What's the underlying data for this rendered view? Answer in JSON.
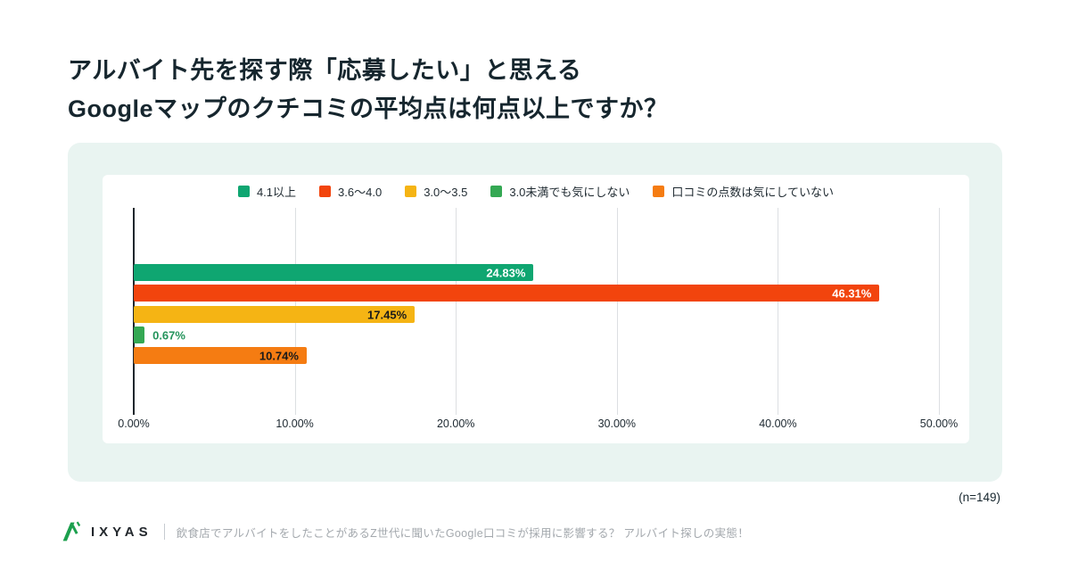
{
  "title": {
    "line1": "アルバイト先を探す際「応募したい」と思える",
    "line2": "Googleマップのクチコミの平均点は何点以上ですか？"
  },
  "note": "(n=149)",
  "footer": {
    "brand": "IXYAS",
    "caption": "飲食店でアルバイトをしたことがあるZ世代に聞いたGoogle口コミが採用に影響する？ アルバイト探しの実態！",
    "logo_color": "#1CA04E"
  },
  "chart_data": {
    "type": "bar",
    "orientation": "horizontal",
    "title": "",
    "categories": [
      "4.1以上",
      "3.6～4.0",
      "3.0～3.5",
      "3.0未満でも気にしない",
      "口コミの点数は気にしていない"
    ],
    "values": [
      24.83,
      46.31,
      17.45,
      0.67,
      10.74
    ],
    "value_labels": [
      "24.83%",
      "46.31%",
      "17.45%",
      "0.67%",
      "10.74%"
    ],
    "colors": [
      "#0FA671",
      "#F2440D",
      "#F5B414",
      "#34A853",
      "#F57C12"
    ],
    "value_label_colors": [
      "#FFFFFF",
      "#FFFFFF",
      "#1A1A1A",
      "#23935B",
      "#1A1A1A"
    ],
    "xlim": [
      0,
      50
    ],
    "x_ticks": [
      "0.00%",
      "10.00%",
      "20.00%",
      "30.00%",
      "40.00%",
      "50.00%"
    ],
    "x_tick_values": [
      0,
      10,
      20,
      30,
      40,
      50
    ],
    "legend_position": "top",
    "grid": true,
    "axis_color": "#1E262C",
    "grid_color": "#DCDFE2"
  }
}
